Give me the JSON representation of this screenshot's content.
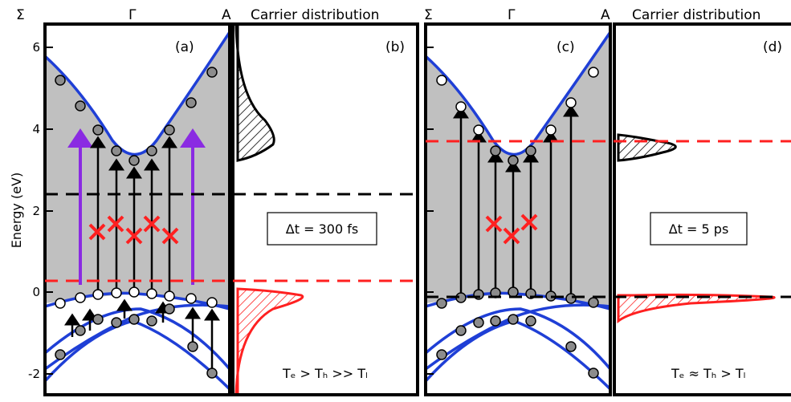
{
  "y_axis": {
    "label": "Energy (eV)",
    "ticks": [
      "6",
      "4",
      "2",
      "0",
      "-2"
    ]
  },
  "k_labels": {
    "left": "Σ",
    "center": "Γ",
    "right": "A"
  },
  "panels": {
    "a": {
      "letter": "(a)"
    },
    "b": {
      "letter": "(b)",
      "title": "Carrier distribution",
      "delay": "Δt = 300 fs",
      "relation": "Tₑ > Tₕ >> Tₗ"
    },
    "c": {
      "letter": "(c)"
    },
    "d": {
      "letter": "(d)",
      "title": "Carrier distribution",
      "delay": "Δt = 5 ps",
      "relation": "Tₑ ≈ Tₕ > Tₗ"
    }
  },
  "colors": {
    "band": "#1f3fd6",
    "fill": "#c0c0c0",
    "pump": "#8a2be2",
    "electron": "#000000",
    "hole": "#ff2020",
    "dot": "#8c8c8c"
  }
}
